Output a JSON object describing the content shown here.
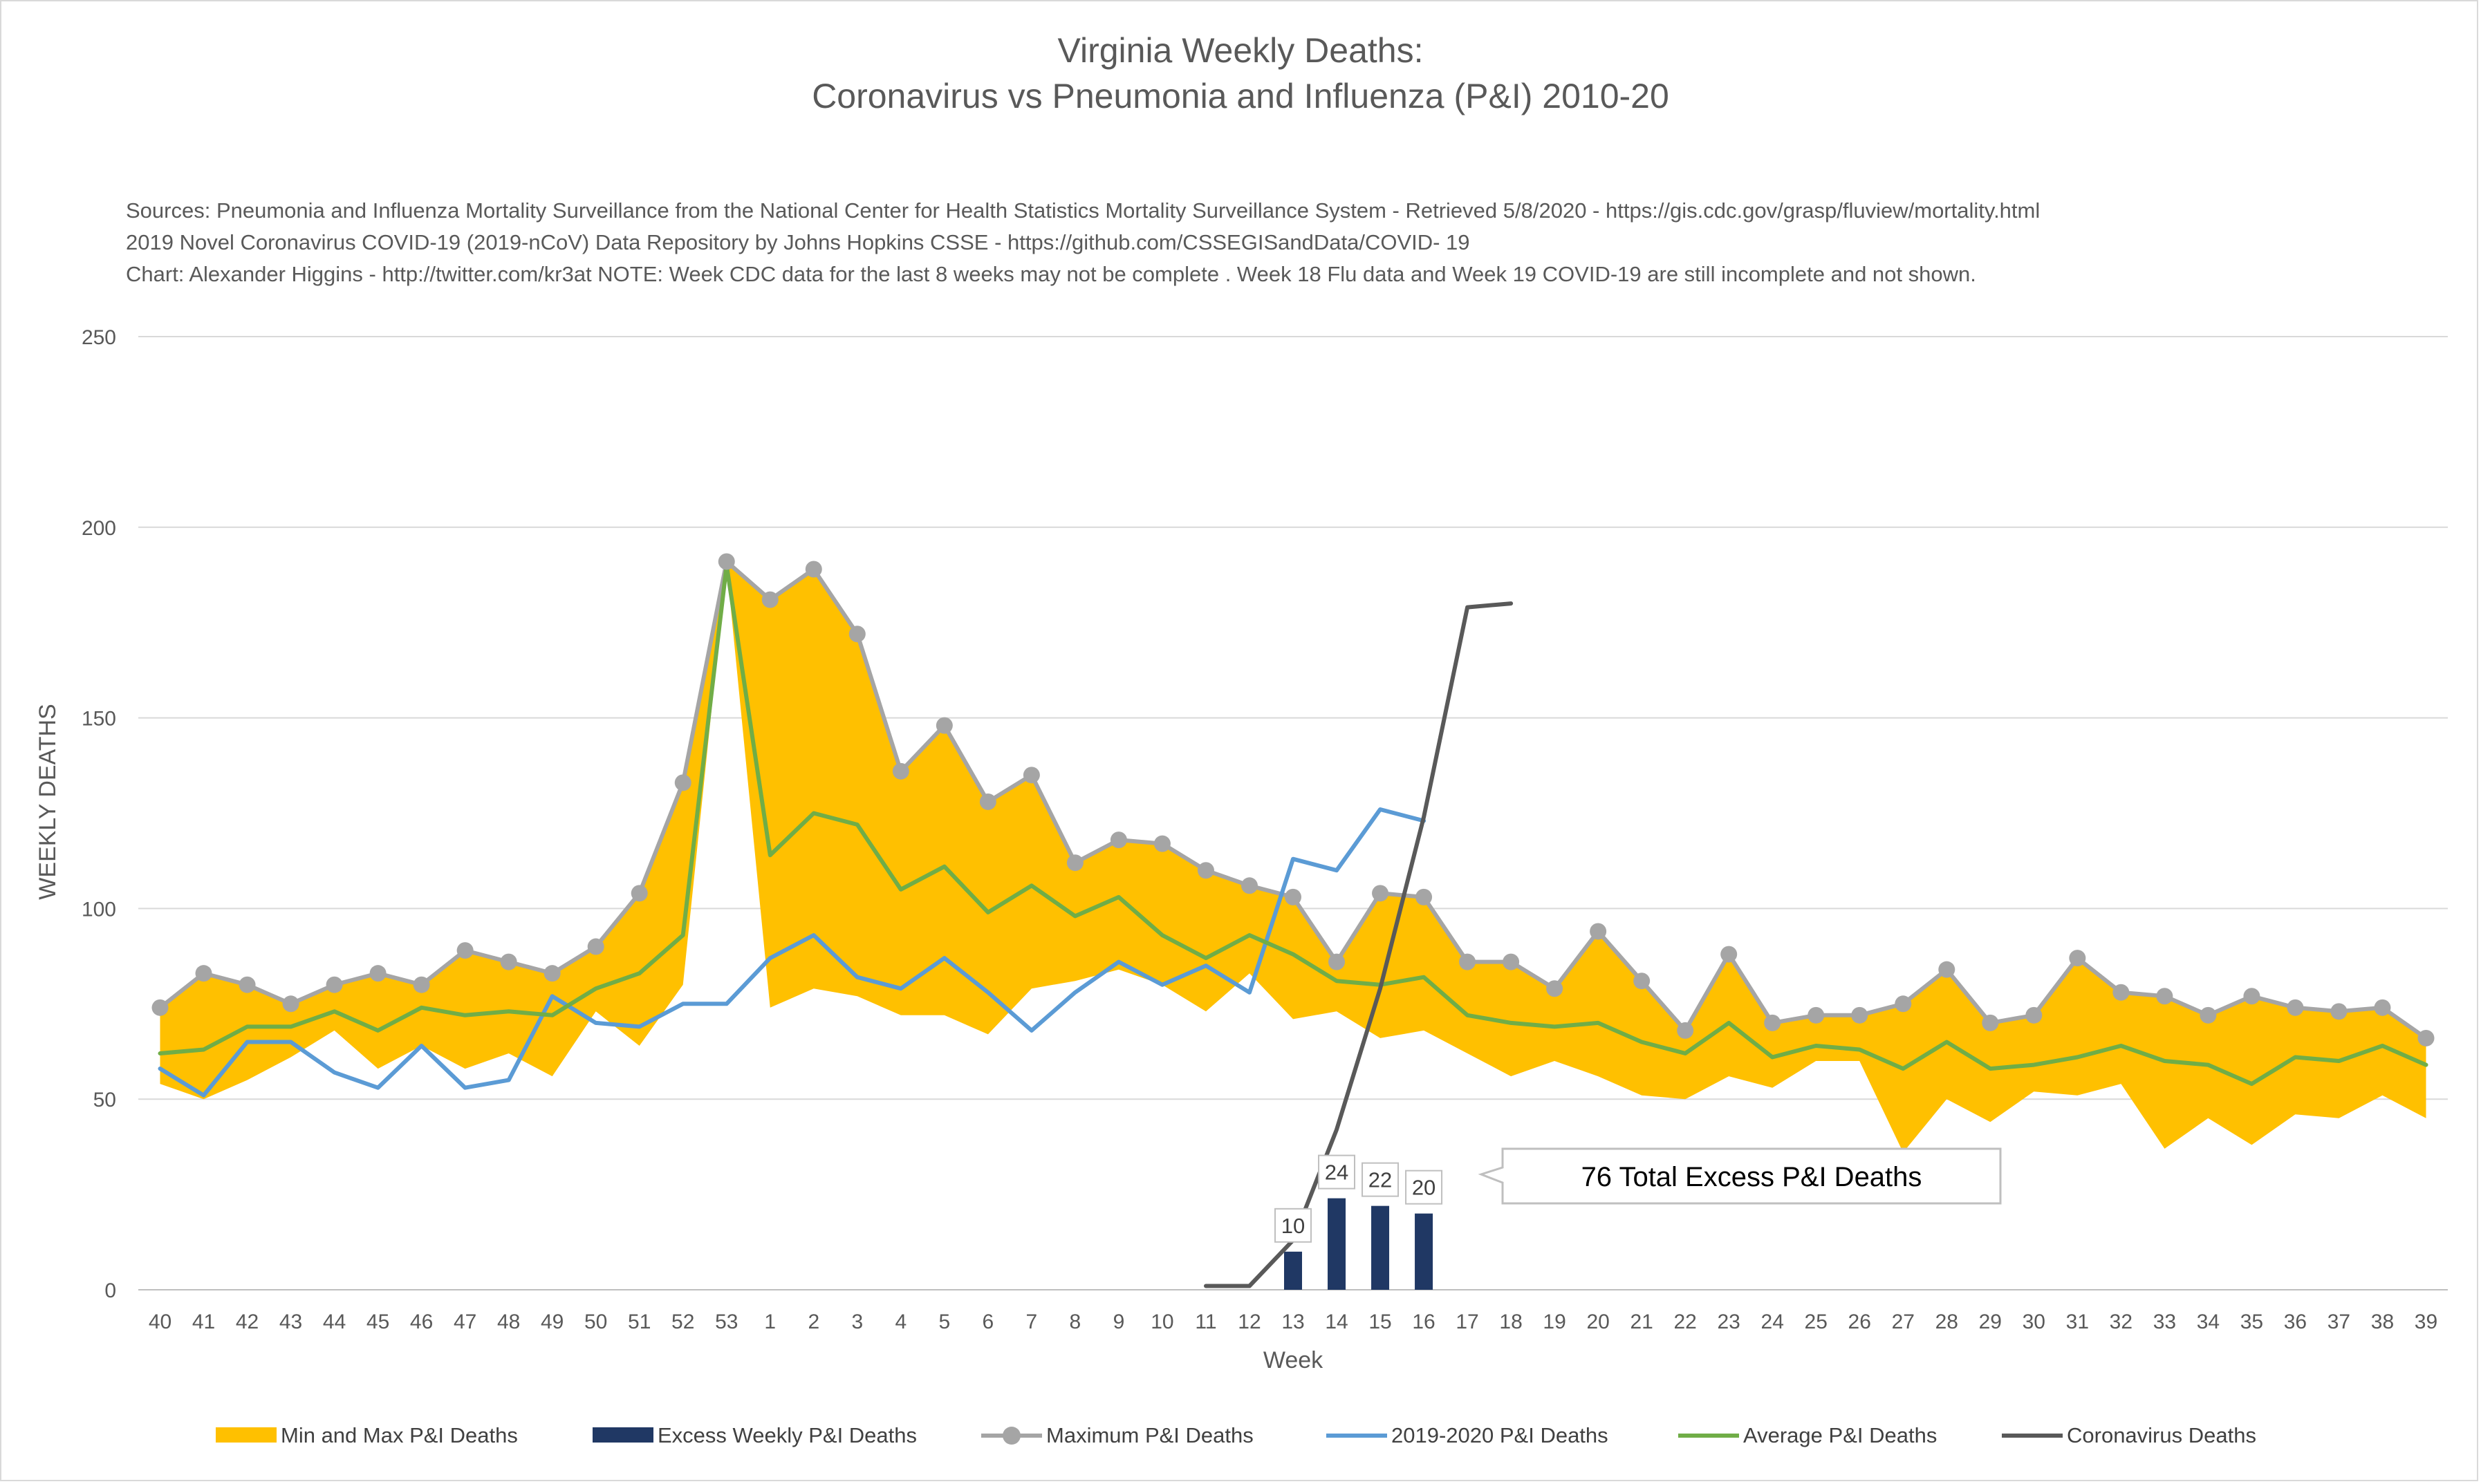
{
  "chart_data": {
    "type": "line",
    "title": [
      "Virginia Weekly Deaths:",
      "Coronavirus vs Pneumonia and Influenza (P&I) 2010-20"
    ],
    "subtitle": [
      "Sources: Pneumonia and Influenza Mortality Surveillance from the National Center for Health Statistics Mortality Surveillance System - Retrieved 5/8/2020 - https://gis.cdc.gov/grasp/fluview/mortality.html",
      "2019 Novel Coronavirus COVID-19 (2019-nCoV) Data Repository by Johns Hopkins CSSE - https://github.com/CSSEGISandData/COVID- 19",
      "Chart: Alexander Higgins - http://twitter.com/kr3at   NOTE: Week CDC data for the last 8 weeks may not be complete . Week 18 Flu data and Week 19 COVID-19 are still incomplete and not shown."
    ],
    "xlabel": "Week",
    "ylabel": "WEEKLY DEATHS",
    "ylim": [
      0,
      250
    ],
    "yticks": [
      0,
      50,
      100,
      150,
      200,
      250
    ],
    "grid": true,
    "legend_position": "bottom",
    "categories": [
      "40",
      "41",
      "42",
      "43",
      "44",
      "45",
      "46",
      "47",
      "48",
      "49",
      "50",
      "51",
      "52",
      "53",
      "1",
      "2",
      "3",
      "4",
      "5",
      "6",
      "7",
      "8",
      "9",
      "10",
      "11",
      "12",
      "13",
      "14",
      "15",
      "16",
      "17",
      "18",
      "19",
      "20",
      "21",
      "22",
      "23",
      "24",
      "25",
      "26",
      "27",
      "28",
      "29",
      "30",
      "31",
      "32",
      "33",
      "34",
      "35",
      "36",
      "37",
      "38",
      "39"
    ],
    "series": [
      {
        "name": "Min and Max P&I Deaths",
        "type": "area",
        "color": "#ffc000",
        "min": [
          54,
          50,
          55,
          61,
          68,
          58,
          64,
          58,
          62,
          56,
          73,
          64,
          80,
          190,
          74,
          79,
          77,
          72,
          72,
          67,
          79,
          81,
          84,
          80,
          73,
          83,
          71,
          73,
          66,
          68,
          62,
          56,
          60,
          56,
          51,
          50,
          56,
          53,
          60,
          60,
          36,
          50,
          44,
          52,
          51,
          54,
          37,
          45,
          38,
          46,
          45,
          51,
          45
        ],
        "values": [
          74,
          83,
          80,
          75,
          80,
          83,
          80,
          89,
          86,
          83,
          90,
          104,
          133,
          191,
          181,
          189,
          172,
          136,
          148,
          128,
          135,
          112,
          118,
          117,
          110,
          106,
          103,
          86,
          104,
          103,
          86,
          86,
          79,
          94,
          81,
          68,
          88,
          70,
          72,
          72,
          75,
          84,
          70,
          72,
          87,
          78,
          77,
          72,
          77,
          74,
          73,
          74,
          66
        ]
      },
      {
        "name": "Excess Weekly P&I Deaths",
        "type": "bar",
        "color": "#203864",
        "x": [
          "13",
          "14",
          "15",
          "16"
        ],
        "values": [
          10,
          24,
          22,
          20
        ]
      },
      {
        "name": "Maximum P&I Deaths",
        "type": "line",
        "color": "#a5a5a5",
        "marker": "circle",
        "values": [
          74,
          83,
          80,
          75,
          80,
          83,
          80,
          89,
          86,
          83,
          90,
          104,
          133,
          191,
          181,
          189,
          172,
          136,
          148,
          128,
          135,
          112,
          118,
          117,
          110,
          106,
          103,
          86,
          104,
          103,
          86,
          86,
          79,
          94,
          81,
          68,
          88,
          70,
          72,
          72,
          75,
          84,
          70,
          72,
          87,
          78,
          77,
          72,
          77,
          74,
          73,
          74,
          66
        ]
      },
      {
        "name": "2019-2020 P&I Deaths",
        "type": "line",
        "color": "#5b9bd5",
        "values": [
          58,
          51,
          65,
          65,
          57,
          53,
          64,
          53,
          55,
          77,
          70,
          69,
          75,
          75,
          87,
          93,
          82,
          79,
          87,
          78,
          68,
          78,
          86,
          80,
          85,
          78,
          113,
          110,
          126,
          123,
          null,
          null,
          null,
          null,
          null,
          null,
          null,
          null,
          null,
          null,
          null,
          null,
          null,
          null,
          null,
          null,
          null,
          null,
          null,
          null,
          null,
          null,
          null
        ]
      },
      {
        "name": "Average P&I Deaths",
        "type": "line",
        "color": "#70ad47",
        "values": [
          62,
          63,
          69,
          69,
          73,
          68,
          74,
          72,
          73,
          72,
          79,
          83,
          93,
          190,
          114,
          125,
          122,
          105,
          111,
          99,
          106,
          98,
          103,
          93,
          87,
          93,
          88,
          81,
          80,
          82,
          72,
          70,
          69,
          70,
          65,
          62,
          70,
          61,
          64,
          63,
          58,
          65,
          58,
          59,
          61,
          64,
          60,
          59,
          54,
          61,
          60,
          64,
          59
        ]
      },
      {
        "name": "Coronavirus Deaths",
        "type": "line",
        "color": "#595959",
        "values": [
          null,
          null,
          null,
          null,
          null,
          null,
          null,
          null,
          null,
          null,
          null,
          null,
          null,
          null,
          null,
          null,
          null,
          null,
          null,
          null,
          null,
          null,
          null,
          null,
          1,
          1,
          13,
          42,
          79,
          124,
          179,
          180,
          null,
          null,
          null,
          null,
          null,
          null,
          null,
          null,
          null,
          null,
          null,
          null,
          null,
          null,
          null,
          null,
          null,
          null,
          null,
          null,
          null
        ]
      }
    ],
    "annotations": [
      {
        "text": "76 Total Excess P&I Deaths"
      }
    ]
  }
}
